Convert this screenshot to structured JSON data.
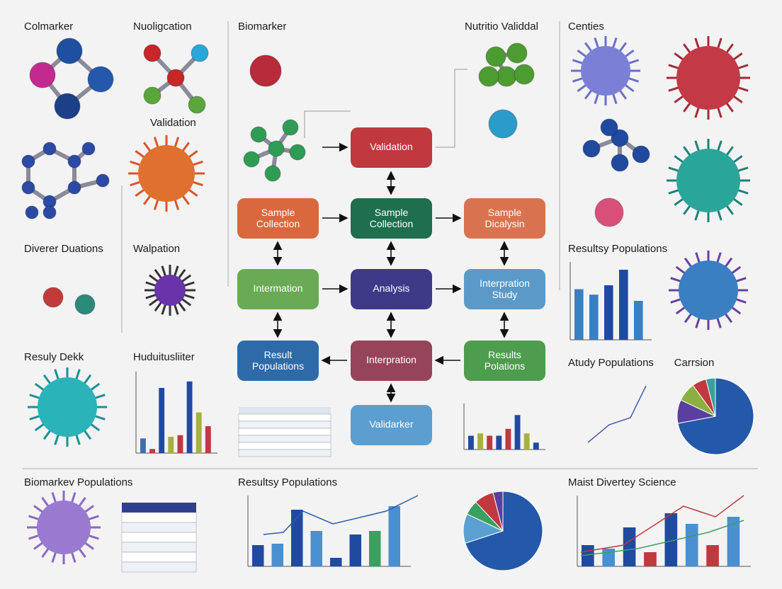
{
  "headings": [
    "Colmarker",
    "Nuoligcation",
    "Validation",
    "Diverer Duations",
    "Walpation",
    "Resuly Dekk",
    "Huduitusliiter",
    "Biomarker",
    "Nutritio Validdal",
    "Centies",
    "Resultsy Populations",
    "Atudy Populations",
    "Carrsion",
    "Biomarkev Populations",
    "Resultsy Populations",
    "Maist Divertey Science"
  ],
  "flow": [
    "Validation",
    "Sample Collection",
    "Sample Collection",
    "Sample Dicalysin",
    "Intermation",
    "Analysis",
    "Interpration Study",
    "Result Populations",
    "Interpration",
    "Results Polations",
    "Validarker"
  ]
}
